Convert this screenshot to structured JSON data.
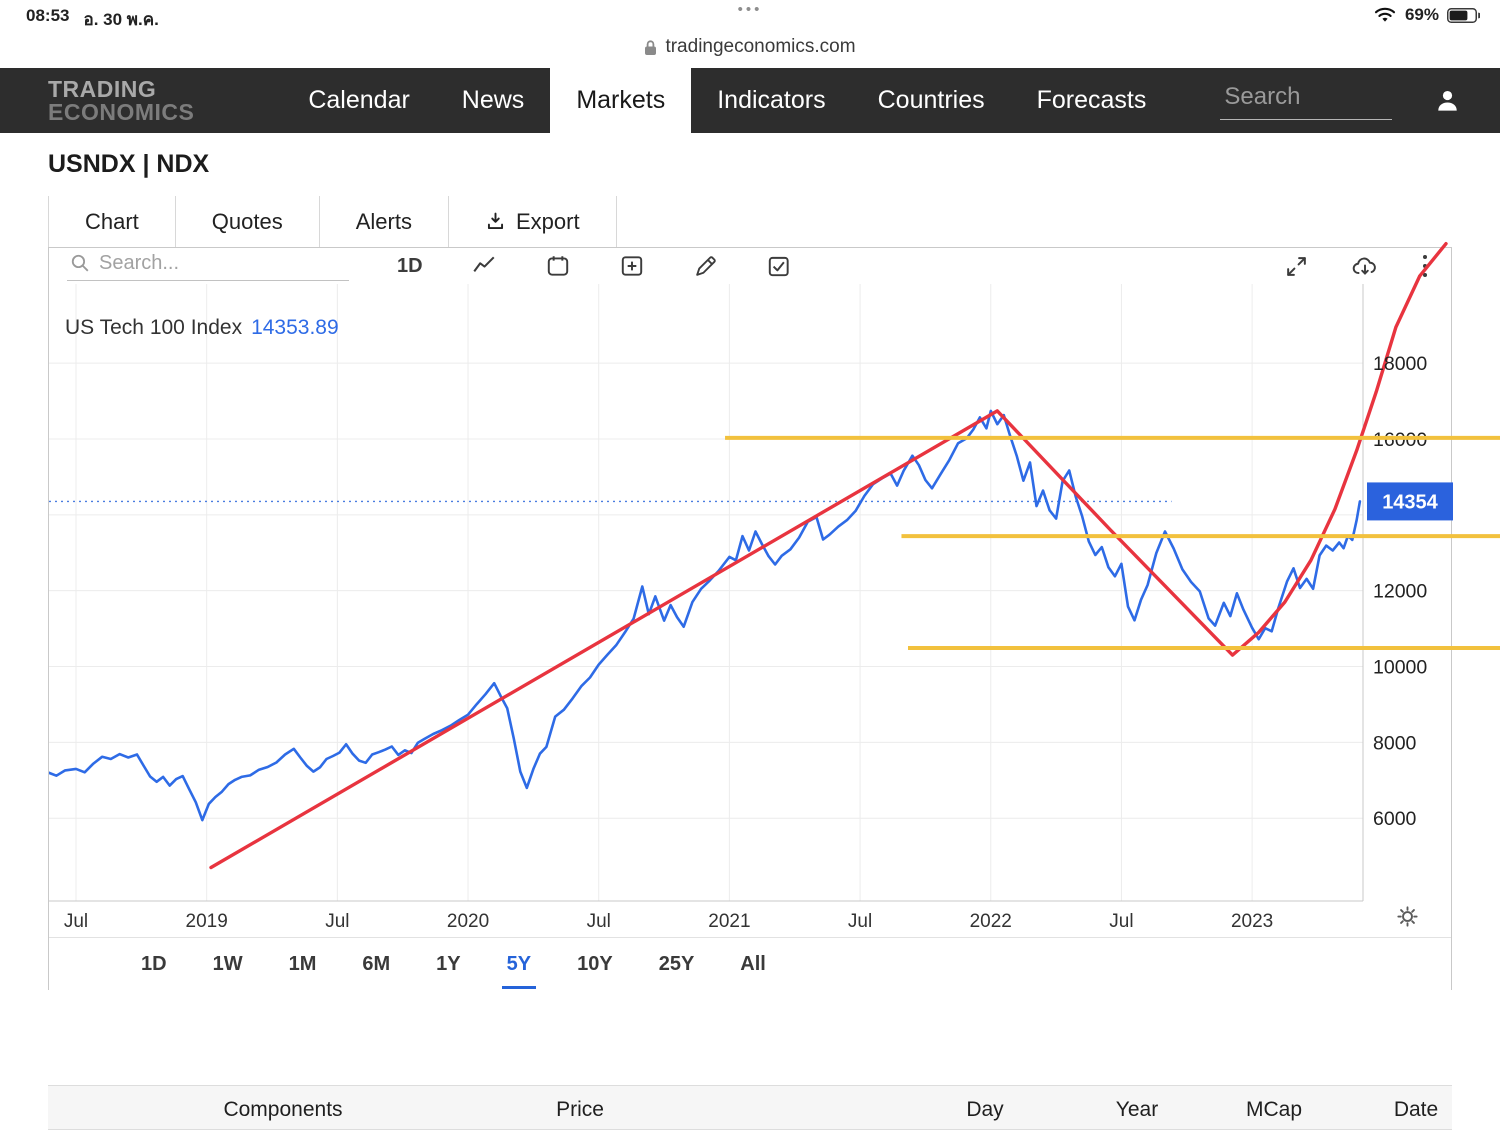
{
  "status_bar": {
    "time": "08:53",
    "date": "อ. 30 พ.ค.",
    "handle_dots": "•••",
    "battery": "69%"
  },
  "url_bar": {
    "domain": "tradingeconomics.com"
  },
  "navbar": {
    "logo_line1": "TRADING",
    "logo_line2": "ECONOMICS",
    "items": [
      {
        "label": "Calendar",
        "active": false
      },
      {
        "label": "News",
        "active": false
      },
      {
        "label": "Markets",
        "active": true
      },
      {
        "label": "Indicators",
        "active": false
      },
      {
        "label": "Countries",
        "active": false
      },
      {
        "label": "Forecasts",
        "active": false
      }
    ],
    "search_placeholder": "Search"
  },
  "symbol_header": {
    "title": "USNDX | NDX"
  },
  "tabs": [
    {
      "label": "Chart",
      "active": true
    },
    {
      "label": "Quotes",
      "active": false
    },
    {
      "label": "Alerts",
      "active": false
    },
    {
      "label": "Export",
      "active": false
    }
  ],
  "chart_toolbar": {
    "search_placeholder": "Search...",
    "interval_label": "1D"
  },
  "chart_data": {
    "type": "line",
    "title": "US Tech 100 Index",
    "last_price_label": "14353.89",
    "axis_badge": "14354",
    "badge_color": "#2b62dd",
    "ylim": [
      3810,
      20090
    ],
    "yticks": [
      6000,
      8000,
      10000,
      12000,
      14000,
      16000,
      18000
    ],
    "hidden_ytick": 14000,
    "x_unit": "months_since_2018_07",
    "xticks": [
      {
        "month": 0,
        "label": "Jul"
      },
      {
        "month": 6,
        "label": "2019"
      },
      {
        "month": 12,
        "label": "Jul"
      },
      {
        "month": 18,
        "label": "2020"
      },
      {
        "month": 24,
        "label": "Jul"
      },
      {
        "month": 30,
        "label": "2021"
      },
      {
        "month": 36,
        "label": "Jul"
      },
      {
        "month": 42,
        "label": "2022"
      },
      {
        "month": 48,
        "label": "Jul"
      },
      {
        "month": 54,
        "label": "2023"
      }
    ],
    "series": [
      {
        "name": "US Tech 100 Index",
        "type": "price",
        "color": "#2e6be6",
        "points": [
          [
            -1.3,
            7210
          ],
          [
            -0.9,
            7120
          ],
          [
            -0.5,
            7260
          ],
          [
            0,
            7300
          ],
          [
            0.4,
            7210
          ],
          [
            0.8,
            7440
          ],
          [
            1.2,
            7620
          ],
          [
            1.6,
            7560
          ],
          [
            2.0,
            7690
          ],
          [
            2.4,
            7600
          ],
          [
            2.8,
            7680
          ],
          [
            3.1,
            7390
          ],
          [
            3.4,
            7100
          ],
          [
            3.7,
            6960
          ],
          [
            4.0,
            7090
          ],
          [
            4.3,
            6860
          ],
          [
            4.6,
            7030
          ],
          [
            4.9,
            7110
          ],
          [
            5.2,
            6760
          ],
          [
            5.5,
            6420
          ],
          [
            5.8,
            5950
          ],
          [
            6.1,
            6380
          ],
          [
            6.4,
            6560
          ],
          [
            6.7,
            6700
          ],
          [
            7.0,
            6900
          ],
          [
            7.3,
            7010
          ],
          [
            7.6,
            7090
          ],
          [
            8.0,
            7130
          ],
          [
            8.4,
            7280
          ],
          [
            8.8,
            7350
          ],
          [
            9.2,
            7470
          ],
          [
            9.6,
            7680
          ],
          [
            10.0,
            7830
          ],
          [
            10.3,
            7600
          ],
          [
            10.6,
            7380
          ],
          [
            10.9,
            7230
          ],
          [
            11.2,
            7340
          ],
          [
            11.5,
            7560
          ],
          [
            11.8,
            7640
          ],
          [
            12.1,
            7730
          ],
          [
            12.4,
            7950
          ],
          [
            12.7,
            7700
          ],
          [
            13.0,
            7520
          ],
          [
            13.3,
            7460
          ],
          [
            13.6,
            7680
          ],
          [
            13.9,
            7740
          ],
          [
            14.2,
            7810
          ],
          [
            14.5,
            7890
          ],
          [
            14.8,
            7670
          ],
          [
            15.1,
            7790
          ],
          [
            15.4,
            7720
          ],
          [
            15.7,
            7990
          ],
          [
            16.0,
            8090
          ],
          [
            16.4,
            8220
          ],
          [
            16.8,
            8320
          ],
          [
            17.2,
            8440
          ],
          [
            17.6,
            8590
          ],
          [
            18.0,
            8730
          ],
          [
            18.4,
            9010
          ],
          [
            18.8,
            9270
          ],
          [
            19.2,
            9560
          ],
          [
            19.5,
            9220
          ],
          [
            19.8,
            8900
          ],
          [
            20.1,
            8100
          ],
          [
            20.4,
            7230
          ],
          [
            20.7,
            6800
          ],
          [
            21.0,
            7300
          ],
          [
            21.3,
            7700
          ],
          [
            21.6,
            7880
          ],
          [
            22.0,
            8680
          ],
          [
            22.4,
            8860
          ],
          [
            22.8,
            9160
          ],
          [
            23.2,
            9480
          ],
          [
            23.6,
            9710
          ],
          [
            24.0,
            10050
          ],
          [
            24.4,
            10310
          ],
          [
            24.8,
            10560
          ],
          [
            25.2,
            10900
          ],
          [
            25.6,
            11260
          ],
          [
            26.0,
            12110
          ],
          [
            26.3,
            11380
          ],
          [
            26.6,
            11850
          ],
          [
            27.0,
            11210
          ],
          [
            27.3,
            11620
          ],
          [
            27.6,
            11300
          ],
          [
            27.9,
            11050
          ],
          [
            28.3,
            11700
          ],
          [
            28.7,
            12050
          ],
          [
            29.1,
            12270
          ],
          [
            29.5,
            12520
          ],
          [
            30.0,
            12890
          ],
          [
            30.3,
            12800
          ],
          [
            30.6,
            13440
          ],
          [
            30.9,
            13060
          ],
          [
            31.2,
            13560
          ],
          [
            31.5,
            13220
          ],
          [
            31.8,
            12910
          ],
          [
            32.1,
            12690
          ],
          [
            32.4,
            12920
          ],
          [
            32.8,
            13090
          ],
          [
            33.2,
            13400
          ],
          [
            33.6,
            13820
          ],
          [
            34.0,
            13940
          ],
          [
            34.3,
            13350
          ],
          [
            34.6,
            13480
          ],
          [
            35.0,
            13690
          ],
          [
            35.4,
            13860
          ],
          [
            35.8,
            14110
          ],
          [
            36.2,
            14500
          ],
          [
            36.6,
            14810
          ],
          [
            37.0,
            14960
          ],
          [
            37.4,
            15090
          ],
          [
            37.7,
            14770
          ],
          [
            38.0,
            15160
          ],
          [
            38.4,
            15560
          ],
          [
            38.7,
            15310
          ],
          [
            39.0,
            14920
          ],
          [
            39.3,
            14700
          ],
          [
            39.7,
            15080
          ],
          [
            40.1,
            15450
          ],
          [
            40.5,
            15890
          ],
          [
            40.9,
            16020
          ],
          [
            41.2,
            16250
          ],
          [
            41.5,
            16570
          ],
          [
            41.8,
            16280
          ],
          [
            42.0,
            16740
          ],
          [
            42.3,
            16390
          ],
          [
            42.6,
            16630
          ],
          [
            42.9,
            16060
          ],
          [
            43.2,
            15540
          ],
          [
            43.5,
            14900
          ],
          [
            43.8,
            15380
          ],
          [
            44.1,
            14230
          ],
          [
            44.4,
            14640
          ],
          [
            44.7,
            14120
          ],
          [
            45.0,
            13900
          ],
          [
            45.3,
            14890
          ],
          [
            45.6,
            15170
          ],
          [
            45.9,
            14480
          ],
          [
            46.2,
            13960
          ],
          [
            46.5,
            13300
          ],
          [
            46.8,
            12940
          ],
          [
            47.1,
            13150
          ],
          [
            47.4,
            12620
          ],
          [
            47.7,
            12380
          ],
          [
            48.0,
            12710
          ],
          [
            48.3,
            11580
          ],
          [
            48.6,
            11220
          ],
          [
            48.9,
            11760
          ],
          [
            49.2,
            12150
          ],
          [
            49.6,
            12990
          ],
          [
            50.0,
            13560
          ],
          [
            50.4,
            13110
          ],
          [
            50.8,
            12560
          ],
          [
            51.2,
            12230
          ],
          [
            51.6,
            11980
          ],
          [
            52.0,
            11270
          ],
          [
            52.3,
            11080
          ],
          [
            52.7,
            11680
          ],
          [
            53.0,
            11330
          ],
          [
            53.3,
            11930
          ],
          [
            53.6,
            11500
          ],
          [
            54.0,
            11020
          ],
          [
            54.3,
            10720
          ],
          [
            54.6,
            11010
          ],
          [
            54.9,
            10930
          ],
          [
            55.2,
            11540
          ],
          [
            55.6,
            12240
          ],
          [
            55.9,
            12590
          ],
          [
            56.2,
            12070
          ],
          [
            56.5,
            12310
          ],
          [
            56.8,
            12050
          ],
          [
            57.1,
            12930
          ],
          [
            57.4,
            13190
          ],
          [
            57.7,
            13060
          ],
          [
            58.0,
            13270
          ],
          [
            58.2,
            13120
          ],
          [
            58.4,
            13450
          ],
          [
            58.6,
            13340
          ],
          [
            58.8,
            13870
          ],
          [
            58.95,
            14354
          ]
        ]
      },
      {
        "name": "trend-annotation",
        "type": "drawing",
        "color": "#e8343f",
        "points": [
          [
            6.2,
            4700
          ],
          [
            42.3,
            16740
          ],
          [
            47.5,
            13600
          ],
          [
            53.1,
            10300
          ],
          [
            54.3,
            10900
          ],
          [
            55.5,
            11700
          ],
          [
            56.7,
            12800
          ],
          [
            57.8,
            14150
          ],
          [
            58.8,
            15700
          ],
          [
            59.7,
            17250
          ],
          [
            60.6,
            18950
          ],
          [
            61.7,
            20300
          ],
          [
            62.9,
            21150
          ]
        ]
      }
    ],
    "horizontal_rays": [
      {
        "value": 16030,
        "start_month": 29.8,
        "color": "#f2c13d"
      },
      {
        "value": 13440,
        "start_month": 37.9,
        "color": "#f2c13d"
      },
      {
        "value": 10490,
        "start_month": 38.2,
        "color": "#f2c13d"
      }
    ],
    "current_price_line": {
      "value": 14353.89,
      "style": "dotted",
      "color": "#4a7de0",
      "end_month": 50.3
    }
  },
  "range_buttons": [
    {
      "label": "1D",
      "active": false
    },
    {
      "label": "1W",
      "active": false
    },
    {
      "label": "1M",
      "active": false
    },
    {
      "label": "6M",
      "active": false
    },
    {
      "label": "1Y",
      "active": false
    },
    {
      "label": "5Y",
      "active": true
    },
    {
      "label": "10Y",
      "active": false
    },
    {
      "label": "25Y",
      "active": false
    },
    {
      "label": "All",
      "active": false
    }
  ],
  "table_header": {
    "columns": [
      "Components",
      "Price",
      "Day",
      "Year",
      "MCap",
      "Date"
    ]
  },
  "colors": {
    "navbar_bg": "#2d2d2d",
    "accent_blue": "#2563d9",
    "chart_line_blue": "#2e6be6",
    "trend_red": "#e8343f",
    "ray_yellow": "#f2c13d"
  }
}
